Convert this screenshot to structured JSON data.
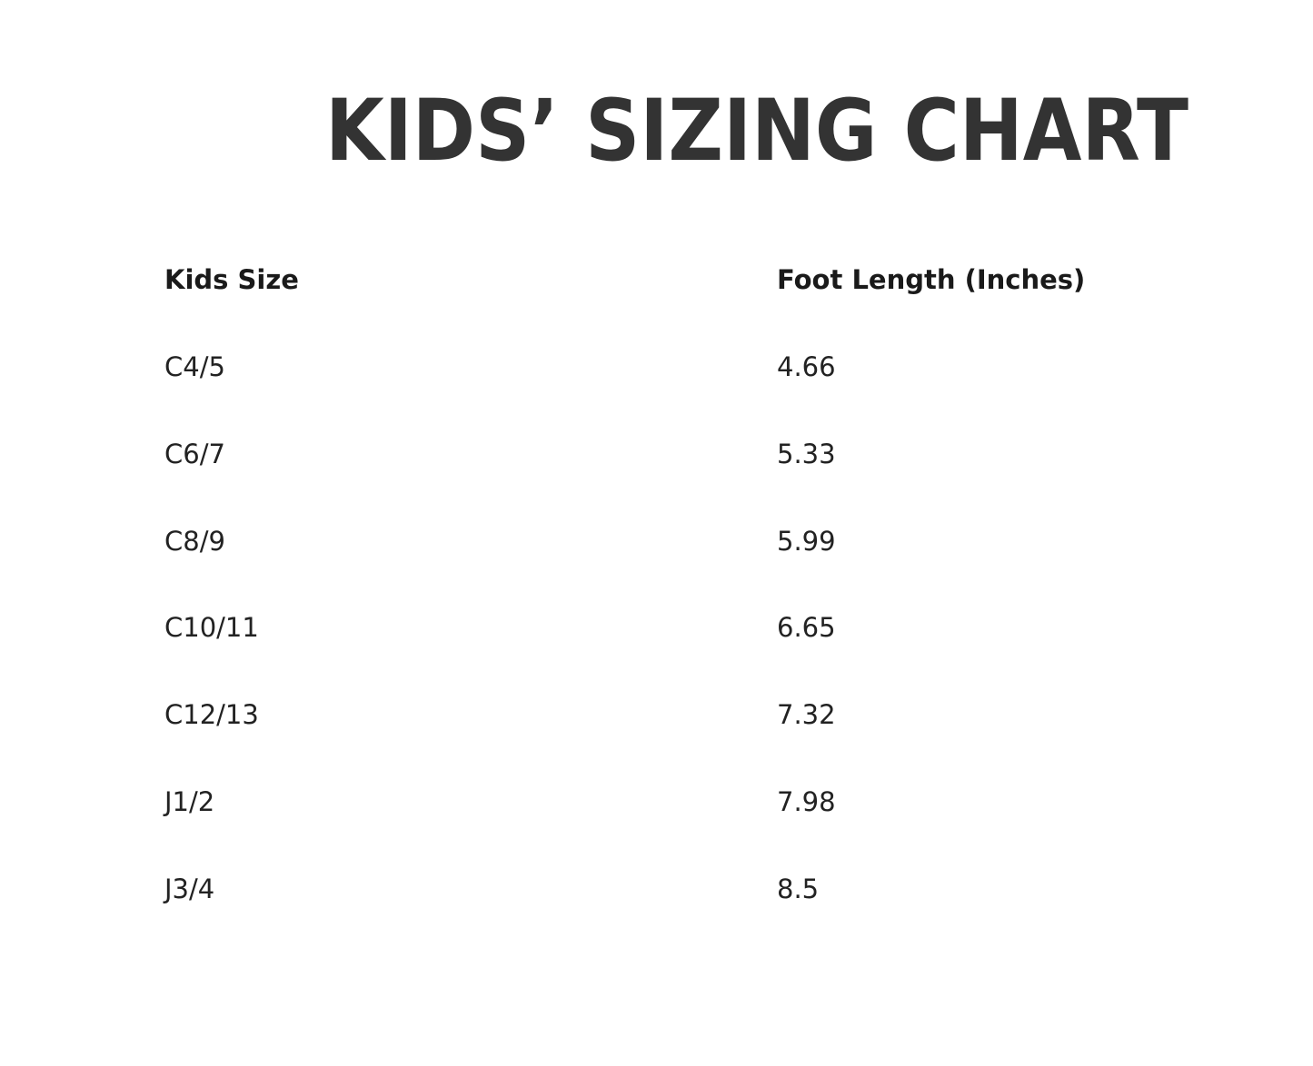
{
  "header": {
    "title": "KIDS’ SIZING CHART"
  },
  "table": {
    "columns": [
      "Kids Size",
      "Foot Length (Inches)"
    ],
    "rows": [
      [
        "C4/5",
        "4.66"
      ],
      [
        "C6/7",
        "5.33"
      ],
      [
        "C8/9",
        "5.99"
      ],
      [
        "C10/11",
        "6.65"
      ],
      [
        "C12/13",
        "7.32"
      ],
      [
        "J1/2",
        "7.98"
      ],
      [
        "J3/4",
        "8.5"
      ]
    ]
  }
}
